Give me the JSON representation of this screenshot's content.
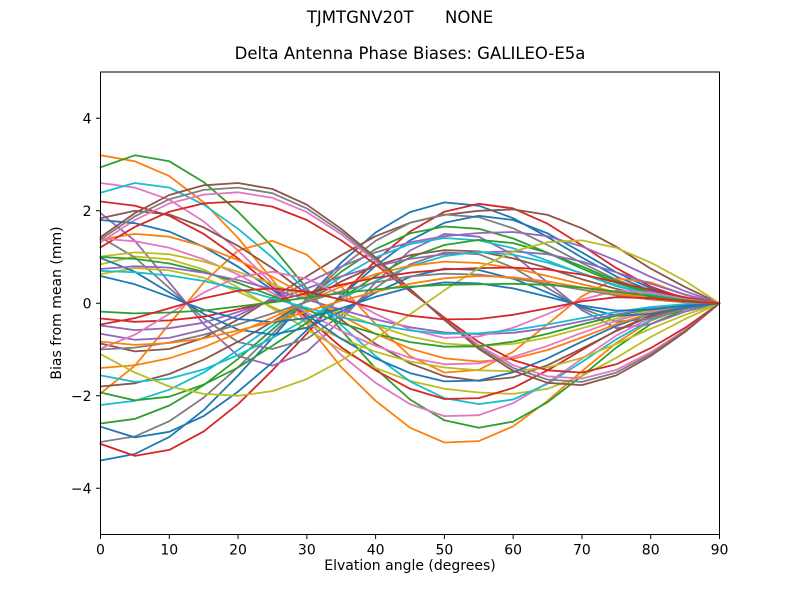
{
  "figure": {
    "suptitle": "TJMTGNV20T      NONE",
    "axes_title": "Delta Antenna Phase Biases: GALILEO-E5a",
    "xlabel": "Elvation angle (degrees)",
    "ylabel": "Bias from mean (mm)",
    "background": "#ffffff",
    "spine_color": "#000000"
  },
  "chart_data": {
    "type": "line",
    "title": "Delta Antenna Phase Biases: GALILEO-E5a",
    "xlabel": "Elvation angle (degrees)",
    "ylabel": "Bias from mean (mm)",
    "xlim": [
      0,
      90
    ],
    "ylim": [
      -5,
      5
    ],
    "xticks": [
      0,
      10,
      20,
      30,
      40,
      50,
      60,
      70,
      80,
      90
    ],
    "xtick_labels": [
      "0",
      "10",
      "20",
      "30",
      "40",
      "50",
      "60",
      "70",
      "80",
      "90"
    ],
    "yticks": [
      -4,
      -2,
      0,
      2,
      4
    ],
    "ytick_labels": [
      "−4",
      "−2",
      "0",
      "2",
      "4"
    ],
    "grid": false,
    "legend": "none",
    "palette": [
      "#1f77b4",
      "#ff7f0e",
      "#2ca02c",
      "#d62728",
      "#9467bd",
      "#8c564b",
      "#e377c2",
      "#7f7f7f",
      "#bcbd22",
      "#17becf"
    ],
    "x": [
      0,
      5,
      10,
      15,
      20,
      25,
      30,
      35,
      40,
      45,
      50,
      55,
      60,
      65,
      70,
      75,
      80,
      85,
      90
    ],
    "series": [
      {
        "color": "#1f77b4",
        "y": [
          -3.4,
          -3.26,
          -2.89,
          -2.31,
          -1.56,
          -0.75,
          0.1,
          0.88,
          1.53,
          1.97,
          2.18,
          2.11,
          1.84,
          1.43,
          0.99,
          0.58,
          0.27,
          0.07,
          0.0
        ]
      },
      {
        "color": "#ff7f0e",
        "y": [
          3.2,
          3.07,
          2.75,
          2.18,
          1.41,
          0.51,
          -0.45,
          -1.38,
          -2.11,
          -2.69,
          -3.01,
          -2.98,
          -2.66,
          -2.11,
          -1.47,
          -0.86,
          -0.38,
          -0.1,
          0.0
        ]
      },
      {
        "color": "#2ca02c",
        "y": [
          2.94,
          3.2,
          3.07,
          2.62,
          1.98,
          1.22,
          0.32,
          -0.58,
          -1.41,
          -2.08,
          -2.53,
          -2.69,
          -2.56,
          -2.14,
          -1.57,
          -0.96,
          -0.45,
          -0.13,
          0.0
        ]
      },
      {
        "color": "#d62728",
        "y": [
          -3.04,
          -3.3,
          -3.17,
          -2.77,
          -2.18,
          -1.45,
          -0.66,
          0.17,
          0.92,
          1.55,
          1.98,
          2.15,
          2.05,
          1.72,
          1.25,
          0.76,
          0.36,
          0.1,
          0.0
        ]
      },
      {
        "color": "#9467bd",
        "y": [
          1.95,
          1.35,
          0.45,
          -0.45,
          -1.14,
          -1.35,
          -1.05,
          -0.36,
          0.45,
          1.14,
          1.5,
          1.44,
          1.05,
          0.45,
          -0.15,
          -0.54,
          -0.45,
          -0.18,
          0.0
        ]
      },
      {
        "color": "#8c564b",
        "y": [
          -0.87,
          -1.04,
          -0.99,
          -0.75,
          -0.35,
          0.12,
          0.58,
          1.04,
          1.45,
          1.74,
          1.91,
          2.0,
          2.03,
          1.91,
          1.62,
          1.22,
          0.75,
          0.35,
          0.0
        ]
      },
      {
        "color": "#e377c2",
        "y": [
          2.6,
          2.5,
          2.24,
          1.77,
          1.14,
          0.42,
          -0.36,
          -1.12,
          -1.72,
          -2.18,
          -2.44,
          -2.42,
          -2.16,
          -1.72,
          -1.2,
          -0.7,
          -0.31,
          -0.08,
          0.0
        ]
      },
      {
        "color": "#7f7f7f",
        "y": [
          -3.0,
          -2.88,
          -2.55,
          -2.04,
          -1.38,
          -0.66,
          0.09,
          0.78,
          1.35,
          1.74,
          1.92,
          1.86,
          1.62,
          1.26,
          0.87,
          0.51,
          0.24,
          0.06,
          0.0
        ]
      },
      {
        "color": "#bcbd22",
        "y": [
          0.84,
          1.01,
          0.95,
          0.73,
          0.34,
          -0.11,
          -0.56,
          -1.01,
          -1.4,
          -1.68,
          -1.85,
          -1.93,
          -1.96,
          -1.85,
          -1.57,
          -1.18,
          -0.73,
          -0.34,
          0.0
        ]
      },
      {
        "color": "#17becf",
        "y": [
          2.39,
          2.6,
          2.5,
          2.13,
          1.61,
          0.99,
          0.26,
          -0.47,
          -1.14,
          -1.69,
          -2.05,
          -2.18,
          -2.08,
          -1.74,
          -1.27,
          -0.78,
          -0.36,
          -0.1,
          0.0
        ]
      },
      {
        "color": "#1f77b4",
        "y": [
          -2.67,
          -2.9,
          -2.78,
          -2.44,
          -1.91,
          -1.28,
          -0.58,
          0.15,
          0.81,
          1.36,
          1.74,
          1.89,
          1.8,
          1.51,
          1.1,
          0.67,
          0.32,
          0.09,
          0.0
        ]
      },
      {
        "color": "#ff7f0e",
        "y": [
          -1.95,
          -1.35,
          -0.45,
          0.45,
          1.14,
          1.35,
          1.05,
          0.36,
          -0.45,
          -1.14,
          -1.5,
          -1.44,
          -1.05,
          -0.45,
          0.15,
          0.54,
          0.45,
          0.18,
          0.0
        ]
      },
      {
        "color": "#2ca02c",
        "y": [
          -2.6,
          -2.5,
          -2.21,
          -1.77,
          -1.2,
          -0.57,
          0.08,
          0.68,
          1.17,
          1.51,
          1.66,
          1.61,
          1.4,
          1.09,
          0.75,
          0.44,
          0.21,
          0.05,
          0.0
        ]
      },
      {
        "color": "#d62728",
        "y": [
          2.2,
          2.11,
          1.89,
          1.5,
          0.97,
          0.35,
          -0.31,
          -0.95,
          -1.45,
          -1.85,
          -2.07,
          -2.05,
          -1.83,
          -1.45,
          -1.01,
          -0.59,
          -0.26,
          -0.07,
          0.0
        ]
      },
      {
        "color": "#9467bd",
        "y": [
          -0.66,
          -0.79,
          -0.75,
          -0.57,
          -0.26,
          0.09,
          0.44,
          0.79,
          1.1,
          1.32,
          1.45,
          1.52,
          1.54,
          1.45,
          1.23,
          0.92,
          0.57,
          0.26,
          0.0
        ]
      },
      {
        "color": "#8c564b",
        "y": [
          1.84,
          2.0,
          1.92,
          1.64,
          1.24,
          0.76,
          0.2,
          -0.36,
          -0.88,
          -1.3,
          -1.58,
          -1.68,
          -1.6,
          -1.34,
          -0.98,
          -0.6,
          -0.28,
          -0.08,
          0.0
        ]
      },
      {
        "color": "#e377c2",
        "y": [
          1.32,
          1.8,
          2.16,
          2.35,
          2.4,
          2.28,
          1.97,
          1.49,
          0.91,
          0.29,
          -0.34,
          -0.91,
          -1.34,
          -1.58,
          -1.63,
          -1.44,
          -1.06,
          -0.58,
          0.0
        ]
      },
      {
        "color": "#7f7f7f",
        "y": [
          1.43,
          0.99,
          0.33,
          -0.33,
          -0.84,
          -0.99,
          -0.77,
          -0.26,
          0.33,
          0.84,
          1.1,
          1.06,
          0.77,
          0.33,
          -0.11,
          -0.4,
          -0.33,
          -0.13,
          0.0
        ]
      },
      {
        "color": "#bcbd22",
        "y": [
          0.63,
          0.76,
          0.71,
          0.55,
          0.25,
          -0.08,
          -0.42,
          -0.76,
          -1.05,
          -1.26,
          -1.39,
          -1.45,
          -1.47,
          -1.39,
          -1.18,
          -0.88,
          -0.55,
          -0.25,
          0.0
        ]
      },
      {
        "color": "#17becf",
        "y": [
          -2.2,
          -2.11,
          -1.87,
          -1.5,
          -1.01,
          -0.48,
          0.07,
          0.57,
          0.99,
          1.28,
          1.41,
          1.36,
          1.19,
          0.92,
          0.64,
          0.37,
          0.18,
          0.04,
          0.0
        ]
      },
      {
        "color": "#1f77b4",
        "y": [
          1.8,
          1.73,
          1.55,
          1.22,
          0.79,
          0.29,
          -0.25,
          -0.77,
          -1.19,
          -1.51,
          -1.69,
          -1.67,
          -1.49,
          -1.19,
          -0.83,
          -0.49,
          -0.22,
          -0.05,
          0.0
        ]
      },
      {
        "color": "#ff7f0e",
        "y": [
          1.38,
          1.5,
          1.44,
          1.23,
          0.93,
          0.57,
          0.15,
          -0.27,
          -0.66,
          -0.98,
          -1.19,
          -1.26,
          -1.2,
          -1.01,
          -0.74,
          -0.45,
          -0.21,
          -0.06,
          0.0
        ]
      },
      {
        "color": "#2ca02c",
        "y": [
          -1.93,
          -2.1,
          -2.02,
          -1.76,
          -1.39,
          -0.92,
          -0.42,
          0.11,
          0.59,
          0.99,
          1.26,
          1.37,
          1.3,
          1.09,
          0.8,
          0.48,
          0.23,
          0.06,
          0.0
        ]
      },
      {
        "color": "#d62728",
        "y": [
          1.21,
          1.65,
          1.98,
          2.16,
          2.2,
          2.09,
          1.8,
          1.36,
          0.84,
          0.26,
          -0.31,
          -0.84,
          -1.23,
          -1.45,
          -1.5,
          -1.32,
          -0.97,
          -0.53,
          0.0
        ]
      },
      {
        "color": "#9467bd",
        "y": [
          -0.48,
          -0.58,
          -0.54,
          -0.42,
          -0.19,
          0.06,
          0.32,
          0.58,
          0.8,
          0.96,
          1.06,
          1.1,
          1.12,
          1.06,
          0.9,
          0.67,
          0.42,
          0.19,
          0.0
        ]
      },
      {
        "color": "#8c564b",
        "y": [
          -1.8,
          -1.73,
          -1.53,
          -1.22,
          -0.83,
          -0.4,
          0.05,
          0.47,
          0.81,
          1.04,
          1.15,
          1.12,
          0.97,
          0.76,
          0.52,
          0.31,
          0.14,
          0.04,
          0.0
        ]
      },
      {
        "color": "#e377c2",
        "y": [
          1.4,
          1.34,
          1.2,
          0.95,
          0.62,
          0.22,
          -0.2,
          -0.6,
          -0.92,
          -1.18,
          -1.32,
          -1.3,
          -1.16,
          -0.92,
          -0.64,
          -0.38,
          -0.17,
          -0.04,
          0.0
        ]
      },
      {
        "color": "#7f7f7f",
        "y": [
          1.38,
          1.88,
          2.25,
          2.45,
          2.5,
          2.38,
          2.05,
          1.55,
          0.95,
          0.3,
          -0.35,
          -0.95,
          -1.4,
          -1.65,
          -1.7,
          -1.5,
          -1.1,
          -0.6,
          0.0
        ]
      },
      {
        "color": "#bcbd22",
        "y": [
          1.01,
          1.1,
          1.06,
          0.9,
          0.68,
          0.42,
          0.11,
          -0.2,
          -0.48,
          -0.72,
          -0.87,
          -0.92,
          -0.88,
          -0.74,
          -0.54,
          -0.33,
          -0.15,
          -0.04,
          0.0
        ]
      },
      {
        "color": "#17becf",
        "y": [
          -1.56,
          -1.7,
          -1.63,
          -1.43,
          -1.12,
          -0.75,
          -0.34,
          0.09,
          0.48,
          0.8,
          1.02,
          1.11,
          1.05,
          0.88,
          0.65,
          0.39,
          0.19,
          0.05,
          0.0
        ]
      },
      {
        "color": "#1f77b4",
        "y": [
          0.98,
          0.68,
          0.23,
          -0.23,
          -0.57,
          -0.68,
          -0.53,
          -0.18,
          0.23,
          0.57,
          0.75,
          0.72,
          0.53,
          0.23,
          -0.08,
          -0.27,
          -0.23,
          -0.09,
          0.0
        ]
      },
      {
        "color": "#ff7f0e",
        "y": [
          -1.4,
          -1.34,
          -1.19,
          -0.95,
          -0.64,
          -0.31,
          0.04,
          0.36,
          0.63,
          0.81,
          0.9,
          0.87,
          0.76,
          0.59,
          0.41,
          0.24,
          0.11,
          0.03,
          0.0
        ]
      },
      {
        "color": "#2ca02c",
        "y": [
          1.0,
          0.96,
          0.86,
          0.68,
          0.44,
          0.16,
          -0.14,
          -0.43,
          -0.66,
          -0.84,
          -0.94,
          -0.93,
          -0.83,
          -0.66,
          -0.46,
          -0.27,
          -0.12,
          -0.03,
          0.0
        ]
      },
      {
        "color": "#d62728",
        "y": [
          -0.33,
          -0.4,
          -0.37,
          -0.29,
          -0.13,
          0.04,
          0.22,
          0.4,
          0.55,
          0.66,
          0.73,
          0.76,
          0.77,
          0.73,
          0.62,
          0.46,
          0.29,
          0.13,
          0.0
        ]
      },
      {
        "color": "#9467bd",
        "y": [
          0.74,
          0.8,
          0.77,
          0.66,
          0.5,
          0.3,
          0.08,
          -0.14,
          -0.35,
          -0.52,
          -0.63,
          -0.67,
          -0.64,
          -0.54,
          -0.39,
          -0.24,
          -0.11,
          -0.03,
          0.0
        ]
      },
      {
        "color": "#8c564b",
        "y": [
          1.43,
          1.95,
          2.34,
          2.55,
          2.6,
          2.47,
          2.13,
          1.61,
          0.99,
          0.31,
          -0.36,
          -0.99,
          -1.46,
          -1.72,
          -1.77,
          -1.56,
          -1.14,
          -0.62,
          0.0
        ]
      },
      {
        "color": "#e377c2",
        "y": [
          -0.98,
          -0.68,
          -0.23,
          0.23,
          0.57,
          0.68,
          0.53,
          0.18,
          -0.23,
          -0.57,
          -0.75,
          -0.72,
          -0.53,
          -0.23,
          0.08,
          0.27,
          0.23,
          0.09,
          0.0
        ]
      },
      {
        "color": "#7f7f7f",
        "y": [
          -1.0,
          -0.96,
          -0.85,
          -0.68,
          -0.46,
          -0.22,
          0.03,
          0.26,
          0.45,
          0.58,
          0.64,
          0.62,
          0.54,
          0.42,
          0.29,
          0.17,
          0.08,
          0.02,
          0.0
        ]
      },
      {
        "color": "#bcbd22",
        "y": [
          -1.1,
          -1.5,
          -1.8,
          -1.96,
          -2.0,
          -1.9,
          -1.64,
          -1.24,
          -0.76,
          -0.24,
          0.28,
          0.76,
          1.12,
          1.32,
          1.36,
          1.2,
          0.88,
          0.48,
          0.0
        ]
      },
      {
        "color": "#17becf",
        "y": [
          0.7,
          0.67,
          0.6,
          0.48,
          0.31,
          0.11,
          -0.1,
          -0.3,
          -0.46,
          -0.59,
          -0.66,
          -0.65,
          -0.58,
          -0.46,
          -0.32,
          -0.19,
          -0.08,
          -0.02,
          0.0
        ]
      },
      {
        "color": "#1f77b4",
        "y": [
          0.59,
          0.41,
          0.14,
          -0.14,
          -0.34,
          -0.41,
          -0.32,
          -0.11,
          0.14,
          0.34,
          0.45,
          0.43,
          0.32,
          0.14,
          -0.05,
          -0.16,
          -0.14,
          -0.05,
          0.0
        ]
      },
      {
        "color": "#ff7f0e",
        "y": [
          -0.83,
          -0.9,
          -0.86,
          -0.76,
          -0.59,
          -0.4,
          -0.18,
          0.05,
          0.25,
          0.42,
          0.54,
          0.59,
          0.56,
          0.47,
          0.34,
          0.21,
          0.1,
          0.03,
          0.0
        ]
      },
      {
        "color": "#2ca02c",
        "y": [
          -0.18,
          -0.22,
          -0.2,
          -0.16,
          -0.07,
          0.02,
          0.12,
          0.22,
          0.3,
          0.36,
          0.4,
          0.41,
          0.42,
          0.4,
          0.34,
          0.25,
          0.16,
          0.07,
          0.0
        ]
      },
      {
        "color": "#d62728",
        "y": [
          -0.46,
          -0.32,
          -0.11,
          0.11,
          0.27,
          0.32,
          0.25,
          0.08,
          -0.11,
          -0.27,
          -0.35,
          -0.34,
          -0.25,
          -0.11,
          0.04,
          0.13,
          0.11,
          0.04,
          0.0
        ]
      }
    ]
  }
}
